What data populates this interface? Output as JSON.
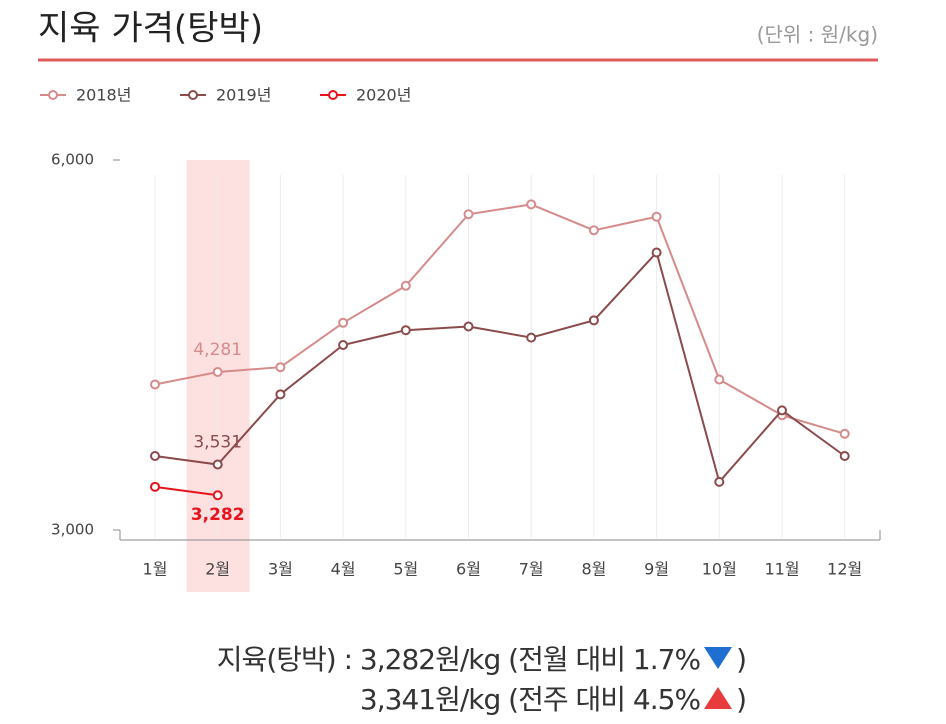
{
  "chart_data": {
    "type": "line",
    "title": "지육 가격(탕박)",
    "unit": "(단위 : 원/kg)",
    "categories": [
      "1월",
      "2월",
      "3월",
      "4월",
      "5월",
      "6월",
      "7월",
      "8월",
      "9월",
      "10월",
      "11월",
      "12월"
    ],
    "series": [
      {
        "name": "2018년",
        "color": "#d68b8b",
        "values": [
          4180,
          4281,
          4320,
          4680,
          4980,
          5560,
          5640,
          5430,
          5540,
          4220,
          3930,
          3780
        ],
        "value_labels": [
          null,
          "4,281",
          null,
          null,
          null,
          null,
          null,
          null,
          null,
          null,
          null,
          null
        ]
      },
      {
        "name": "2019년",
        "color": "#8c4b4b",
        "values": [
          3600,
          3531,
          4100,
          4500,
          4620,
          4650,
          4560,
          4700,
          5250,
          3390,
          3970,
          3600
        ],
        "value_labels": [
          null,
          "3,531",
          null,
          null,
          null,
          null,
          null,
          null,
          null,
          null,
          null,
          null
        ]
      },
      {
        "name": "2020년",
        "color": "#e8141c",
        "values": [
          3350,
          3282,
          null,
          null,
          null,
          null,
          null,
          null,
          null,
          null,
          null,
          null
        ],
        "value_labels": [
          null,
          "3,282",
          null,
          null,
          null,
          null,
          null,
          null,
          null,
          null,
          null,
          null
        ]
      }
    ],
    "ylim": [
      3000,
      6000
    ],
    "yticks": [
      {
        "value": 3000,
        "label": "3,000"
      },
      {
        "value": 6000,
        "label": "6,000"
      }
    ],
    "grid": true,
    "highlight_category": 1,
    "legend": "top-left"
  },
  "summary": {
    "line1": "지육(탕박) : 3,282원/kg (전월 대비 1.7%",
    "close1": ")",
    "line2": "3,341원/kg (전주 대비 4.5%",
    "close2": ")"
  }
}
